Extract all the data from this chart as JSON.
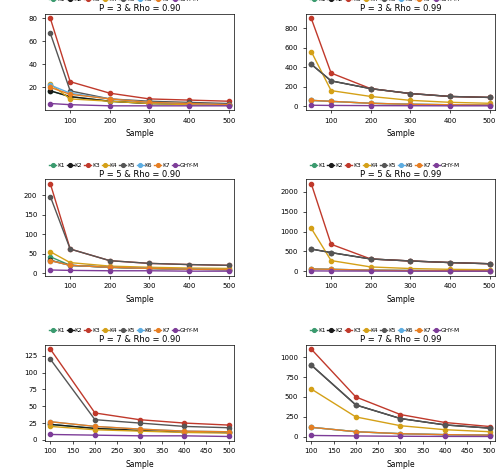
{
  "panels": [
    {
      "title": "P = 3 & Rho = 0.90",
      "x": [
        50,
        100,
        200,
        300,
        400,
        500
      ],
      "series": {
        "K1": [
          17,
          12,
          8,
          6,
          5,
          5
        ],
        "K2": [
          17,
          12,
          8,
          6,
          6,
          5
        ],
        "K3": [
          80,
          25,
          15,
          10,
          9,
          8
        ],
        "K4": [
          23,
          10,
          8,
          6,
          5,
          5
        ],
        "K5": [
          67,
          17,
          10,
          8,
          7,
          6
        ],
        "K6": [
          22,
          15,
          10,
          7,
          6,
          5
        ],
        "K7": [
          20,
          14,
          10,
          7,
          6,
          5
        ],
        "GHY-M": [
          6,
          5,
          4,
          4,
          4,
          4
        ]
      }
    },
    {
      "title": "P = 3 & Rho = 0.99",
      "x": [
        50,
        100,
        200,
        300,
        400,
        500
      ],
      "series": {
        "K1": [
          60,
          50,
          30,
          20,
          15,
          12
        ],
        "K2": [
          430,
          260,
          180,
          130,
          100,
          90
        ],
        "K3": [
          900,
          340,
          180,
          130,
          100,
          90
        ],
        "K4": [
          560,
          160,
          100,
          60,
          40,
          30
        ],
        "K5": [
          430,
          260,
          180,
          130,
          100,
          90
        ],
        "K6": [
          60,
          50,
          30,
          20,
          15,
          12
        ],
        "K7": [
          60,
          50,
          30,
          20,
          15,
          12
        ],
        "GHY-M": [
          10,
          8,
          6,
          5,
          4,
          4
        ]
      }
    },
    {
      "title": "P = 5 & Rho = 0.90",
      "x": [
        50,
        100,
        200,
        300,
        400,
        500
      ],
      "series": {
        "K1": [
          42,
          20,
          15,
          12,
          10,
          9
        ],
        "K2": [
          33,
          20,
          15,
          12,
          10,
          9
        ],
        "K3": [
          230,
          62,
          32,
          25,
          22,
          20
        ],
        "K4": [
          55,
          27,
          18,
          15,
          13,
          12
        ],
        "K5": [
          197,
          62,
          32,
          25,
          22,
          20
        ],
        "K6": [
          32,
          20,
          15,
          12,
          10,
          9
        ],
        "K7": [
          32,
          20,
          15,
          12,
          10,
          9
        ],
        "GHY-M": [
          8,
          7,
          6,
          6,
          5,
          5
        ]
      }
    },
    {
      "title": "P = 5 & Rho = 0.99",
      "x": [
        50,
        100,
        200,
        300,
        400,
        500
      ],
      "series": {
        "K1": [
          60,
          50,
          30,
          20,
          15,
          12
        ],
        "K2": [
          560,
          470,
          310,
          260,
          220,
          190
        ],
        "K3": [
          2200,
          680,
          310,
          260,
          220,
          190
        ],
        "K4": [
          1080,
          270,
          110,
          70,
          50,
          40
        ],
        "K5": [
          560,
          470,
          310,
          260,
          220,
          190
        ],
        "K6": [
          60,
          50,
          30,
          20,
          15,
          12
        ],
        "K7": [
          60,
          50,
          30,
          20,
          15,
          12
        ],
        "GHY-M": [
          10,
          8,
          6,
          5,
          4,
          4
        ]
      }
    },
    {
      "title": "P = 7 & Rho = 0.90",
      "x": [
        100,
        200,
        300,
        400,
        500
      ],
      "series": {
        "K1": [
          23,
          17,
          14,
          12,
          11
        ],
        "K2": [
          23,
          17,
          14,
          12,
          11
        ],
        "K3": [
          135,
          40,
          30,
          25,
          22
        ],
        "K4": [
          20,
          15,
          13,
          11,
          10
        ],
        "K5": [
          120,
          30,
          25,
          20,
          18
        ],
        "K6": [
          27,
          20,
          16,
          13,
          12
        ],
        "K7": [
          27,
          20,
          16,
          13,
          12
        ],
        "GHY-M": [
          8,
          7,
          6,
          6,
          5
        ]
      }
    },
    {
      "title": "P = 7 & Rho = 0.99",
      "x": [
        100,
        200,
        300,
        400,
        500
      ],
      "series": {
        "K1": [
          120,
          65,
          40,
          28,
          22
        ],
        "K2": [
          900,
          400,
          230,
          150,
          110
        ],
        "K3": [
          1100,
          500,
          280,
          180,
          130
        ],
        "K4": [
          600,
          250,
          140,
          90,
          65
        ],
        "K5": [
          900,
          400,
          230,
          150,
          110
        ],
        "K6": [
          120,
          65,
          40,
          28,
          22
        ],
        "K7": [
          120,
          65,
          40,
          28,
          22
        ],
        "GHY-M": [
          18,
          12,
          8,
          6,
          5
        ]
      }
    }
  ],
  "colors": {
    "K1": "#3a9a6e",
    "K2": "#1a1a1a",
    "K3": "#c0392b",
    "K4": "#d4a017",
    "K5": "#555555",
    "K6": "#5dade2",
    "K7": "#e67e22",
    "GHY-M": "#7d3c98"
  },
  "marker": "o",
  "markersize": 3,
  "linewidth": 1.0,
  "xlabel": "Sample",
  "legend_order": [
    "K1",
    "K2",
    "K3",
    "K4",
    "K5",
    "K6",
    "K7",
    "GHY-M"
  ]
}
